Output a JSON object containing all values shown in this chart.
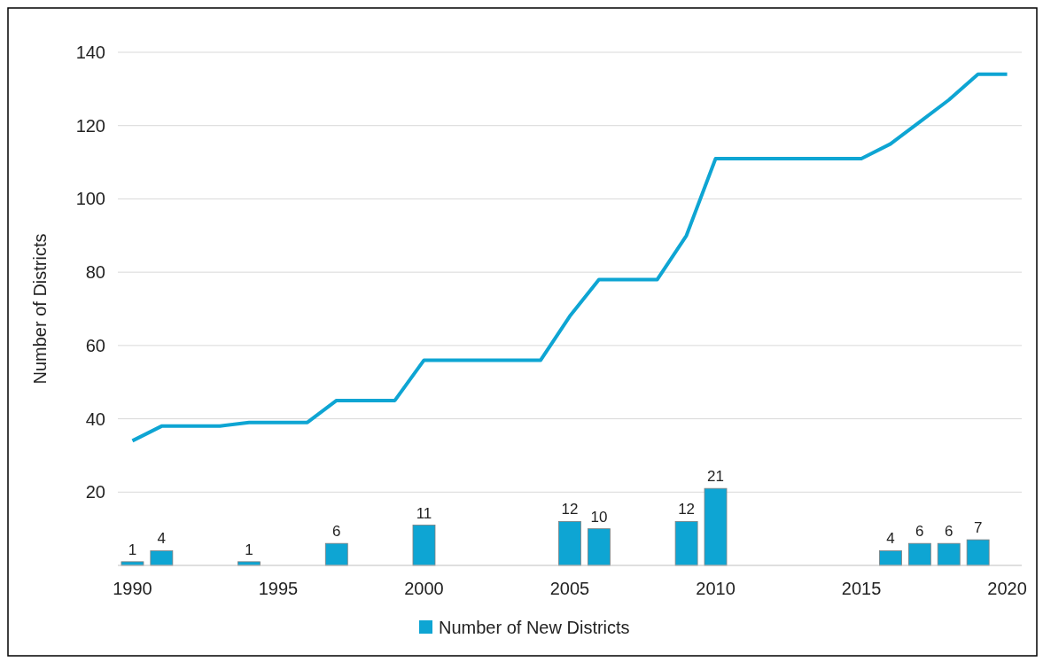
{
  "chart_data": {
    "type": "bar",
    "ylabel": "Number of Districts",
    "xlim": [
      1989.5,
      2020.5
    ],
    "xticks": [
      1990,
      1995,
      2000,
      2005,
      2010,
      2015,
      2020
    ],
    "ylim": [
      0,
      140
    ],
    "yticks": [
      20,
      40,
      60,
      80,
      100,
      120,
      140
    ],
    "grid": "y",
    "legend": "bottom",
    "series": [
      {
        "name": "Number of New Districts",
        "color": "#0ea5d3",
        "x": [
          1990,
          1991,
          1994,
          1997,
          2000,
          2005,
          2006,
          2009,
          2010,
          2016,
          2017,
          2018,
          2019
        ],
        "values": [
          1,
          4,
          1,
          6,
          11,
          12,
          10,
          12,
          21,
          4,
          6,
          6,
          7
        ],
        "value_labels": [
          "1",
          "4",
          "1",
          "6",
          "11",
          "12",
          "10",
          "12",
          "21",
          "4",
          "6",
          "6",
          "7"
        ]
      },
      {
        "type": "line",
        "color": "#0ea5d3",
        "x": [
          1990,
          1991,
          1992,
          1993,
          1994,
          1995,
          1996,
          1997,
          1998,
          1999,
          2000,
          2001,
          2002,
          2003,
          2004,
          2005,
          2006,
          2007,
          2008,
          2009,
          2010,
          2011,
          2012,
          2013,
          2014,
          2015,
          2016,
          2017,
          2018,
          2019,
          2020
        ],
        "values": [
          34,
          38,
          38,
          38,
          39,
          39,
          39,
          45,
          45,
          45,
          56,
          56,
          56,
          56,
          56,
          68,
          78,
          78,
          78,
          90,
          111,
          111,
          111,
          111,
          111,
          111,
          115,
          121,
          127,
          134,
          134
        ]
      }
    ]
  }
}
